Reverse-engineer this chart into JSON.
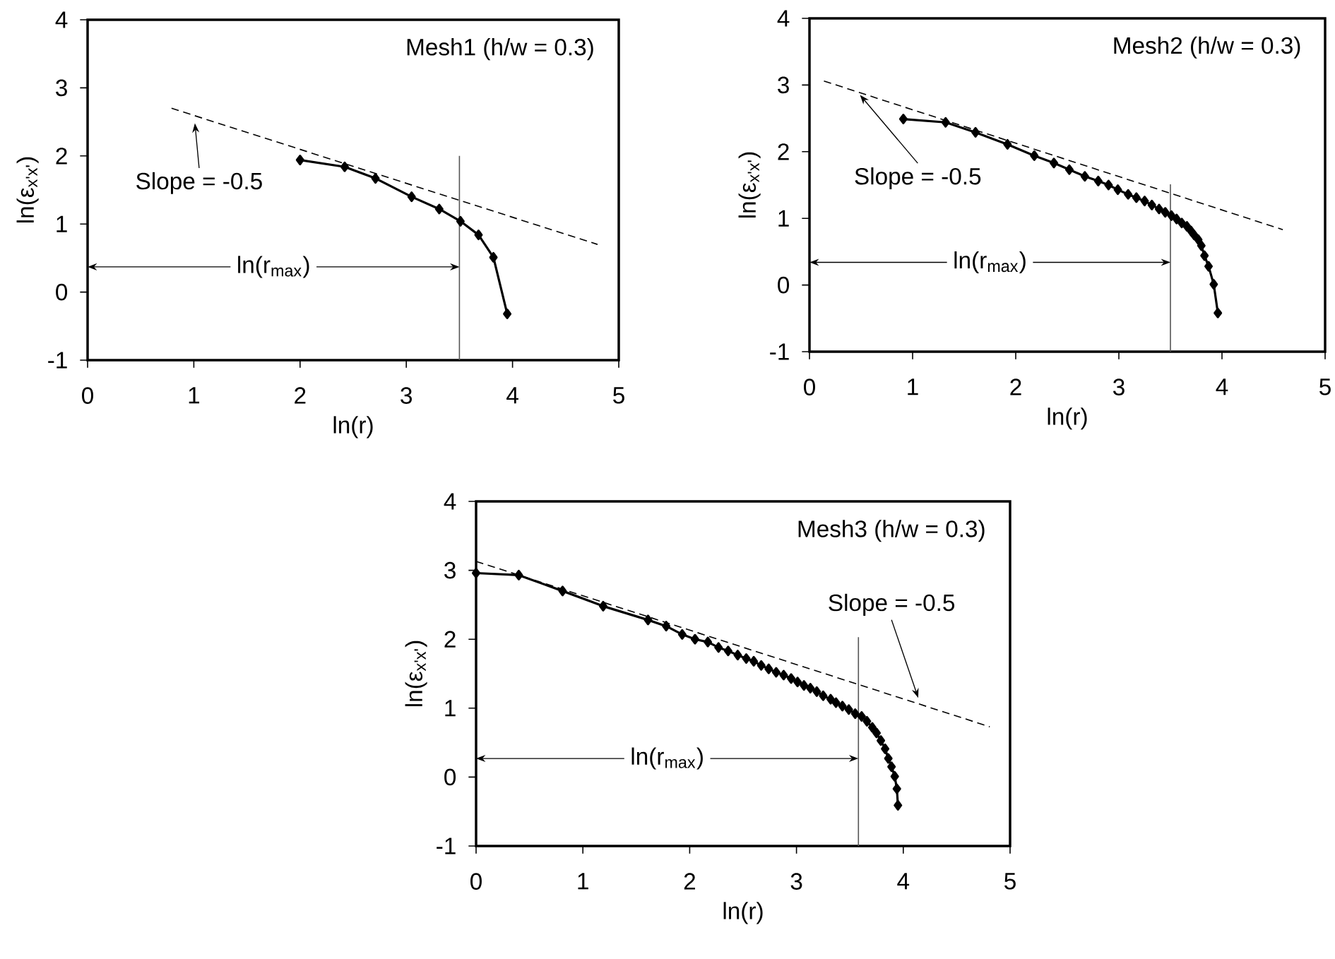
{
  "chart_data": [
    {
      "type": "line",
      "xlabel": "ln(r)",
      "ylabel": "ln(ε$_{x'x'}$)",
      "xlim": [
        0,
        5
      ],
      "ylim": [
        -1,
        4
      ],
      "xticks": [
        0,
        1,
        2,
        3,
        4,
        5
      ],
      "yticks": [
        -1,
        0,
        1,
        2,
        3,
        4
      ],
      "grid": false,
      "annotations": [
        "Mesh1  (h/w = 0.3)",
        {
          "text": "Slope = -0.5",
          "x": 1.01,
          "y": 2.48
        },
        {
          "text": "ln(r$_{max}$)",
          "x": 3.5,
          "y": 0.37
        }
      ],
      "series": [
        {
          "color": "#000000",
          "marker": "diamond",
          "line_style": "solid",
          "x": [
            2.0,
            2.42,
            2.71,
            3.05,
            3.31,
            3.51,
            3.68,
            3.82,
            3.95
          ],
          "values": [
            1.94,
            1.84,
            1.67,
            1.4,
            1.22,
            1.04,
            0.84,
            0.51,
            -0.32
          ]
        },
        {
          "color": "#000000",
          "marker": "none",
          "line_style": "dashed",
          "x": [
            0.79,
            4.8
          ],
          "values": [
            2.7,
            0.7
          ]
        },
        {
          "color": "#555555",
          "marker": "none",
          "line_style": "solid",
          "x": [
            3.5,
            3.5
          ],
          "values": [
            -1,
            2.0
          ]
        }
      ]
    },
    {
      "type": "line",
      "xlabel": "ln(r)",
      "ylabel": "ln(ε$_{x'x'}$)",
      "xlim": [
        0,
        5
      ],
      "ylim": [
        -1,
        4
      ],
      "xticks": [
        0,
        1,
        2,
        3,
        4,
        5
      ],
      "yticks": [
        -1,
        0,
        1,
        2,
        3,
        4
      ],
      "grid": false,
      "annotations": [
        "Mesh2 (h/w = 0.3)",
        {
          "text": "Slope = -0.5",
          "x": 0.49,
          "y": 2.85
        },
        {
          "text": "ln(r$_{max}$)",
          "x": 3.5,
          "y": 0.34
        }
      ],
      "series": [
        {
          "color": "#000000",
          "marker": "diamond",
          "line_style": "solid",
          "x": [
            0.91,
            1.32,
            1.61,
            1.92,
            2.18,
            2.37,
            2.52,
            2.67,
            2.8,
            2.9,
            2.99,
            3.09,
            3.17,
            3.25,
            3.32,
            3.39,
            3.45,
            3.51,
            3.56,
            3.61,
            3.66,
            3.7,
            3.73,
            3.77,
            3.8,
            3.83,
            3.87,
            3.92,
            3.96
          ],
          "values": [
            2.49,
            2.44,
            2.29,
            2.11,
            1.94,
            1.83,
            1.73,
            1.63,
            1.56,
            1.5,
            1.43,
            1.36,
            1.31,
            1.26,
            1.2,
            1.14,
            1.09,
            1.04,
            0.99,
            0.93,
            0.88,
            0.81,
            0.75,
            0.68,
            0.59,
            0.44,
            0.28,
            0.01,
            -0.42
          ]
        },
        {
          "color": "#000000",
          "marker": "none",
          "line_style": "dashed",
          "x": [
            0.14,
            4.59
          ],
          "values": [
            3.06,
            0.83
          ]
        },
        {
          "color": "#555555",
          "marker": "none",
          "line_style": "solid",
          "x": [
            3.5,
            3.5
          ],
          "values": [
            -1,
            1.51
          ]
        }
      ]
    },
    {
      "type": "line",
      "xlabel": "ln(r)",
      "ylabel": "ln(ε$_{x'x'}$)",
      "xlim": [
        0,
        5
      ],
      "ylim": [
        -1,
        4
      ],
      "xticks": [
        0,
        1,
        2,
        3,
        4,
        5
      ],
      "yticks": [
        -1,
        0,
        1,
        2,
        3,
        4
      ],
      "grid": false,
      "annotations": [
        "Mesh3 (h/w = 0.3)",
        {
          "text": "Slope = -0.5",
          "x": 4.14,
          "y": 1.15
        },
        {
          "text": "ln(r$_{max}$)",
          "x": 3.58,
          "y": 0.27
        }
      ],
      "series": [
        {
          "color": "#000000",
          "marker": "diamond",
          "line_style": "solid",
          "x": [
            0,
            0.4,
            0.81,
            1.19,
            1.61,
            1.78,
            1.93,
            2.05,
            2.17,
            2.27,
            2.36,
            2.45,
            2.53,
            2.6,
            2.67,
            2.74,
            2.81,
            2.88,
            2.95,
            3.01,
            3.07,
            3.13,
            3.19,
            3.25,
            3.32,
            3.37,
            3.43,
            3.49,
            3.55,
            3.61,
            3.66,
            3.71,
            3.75,
            3.79,
            3.83,
            3.86,
            3.89,
            3.92,
            3.94,
            3.95
          ],
          "values": [
            2.96,
            2.93,
            2.7,
            2.48,
            2.28,
            2.19,
            2.07,
            2.0,
            1.96,
            1.88,
            1.83,
            1.77,
            1.72,
            1.68,
            1.62,
            1.57,
            1.52,
            1.48,
            1.43,
            1.38,
            1.33,
            1.29,
            1.24,
            1.18,
            1.13,
            1.08,
            1.03,
            0.98,
            0.92,
            0.88,
            0.81,
            0.72,
            0.64,
            0.53,
            0.41,
            0.27,
            0.15,
            0.01,
            -0.17,
            -0.41
          ]
        },
        {
          "color": "#000000",
          "marker": "none",
          "line_style": "dashed",
          "x": [
            0,
            4.81
          ],
          "values": [
            3.13,
            0.73
          ]
        },
        {
          "color": "#555555",
          "marker": "none",
          "line_style": "solid",
          "x": [
            3.58,
            3.58
          ],
          "values": [
            -1,
            2.03
          ]
        }
      ]
    }
  ]
}
